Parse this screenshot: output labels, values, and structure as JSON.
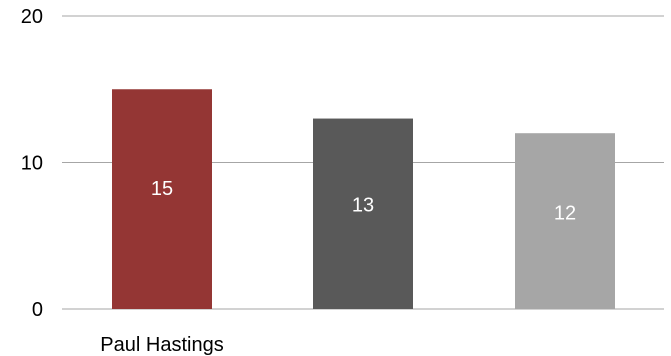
{
  "chart_data": {
    "type": "bar",
    "categories": [
      "Paul Hastings",
      "",
      ""
    ],
    "values": [
      15,
      13,
      12
    ],
    "colors": [
      "#943634",
      "#595959",
      "#a6a6a6"
    ],
    "gridline_color": "#a6a6a6",
    "ylim": [
      0,
      20
    ],
    "yticks": [
      0,
      10,
      20
    ],
    "ytick_labels": [
      "0",
      "10",
      "20"
    ],
    "data_labels": [
      "15",
      "13",
      "12"
    ],
    "grid": true,
    "legend": "none"
  }
}
